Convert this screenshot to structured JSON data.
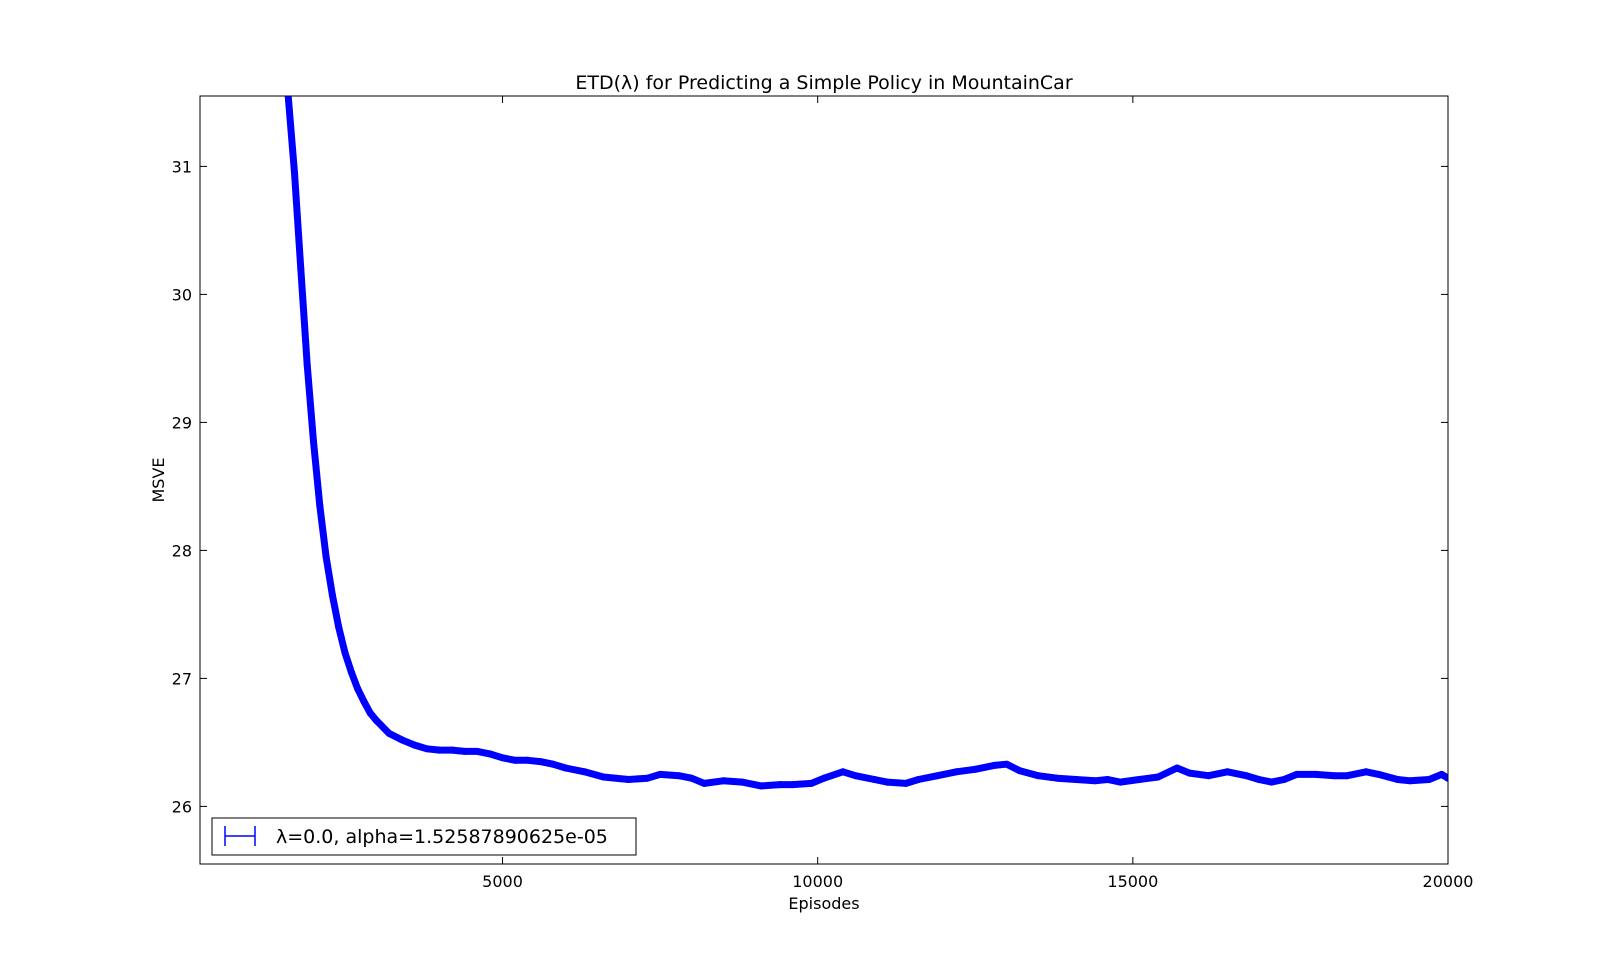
{
  "chart_data": {
    "type": "line",
    "title": "ETD(λ) for Predicting a Simple Policy in MountainCar",
    "xlabel": "Episodes",
    "ylabel": "MSVE",
    "xlim": [
      200,
      20000
    ],
    "ylim": [
      25.55,
      31.55
    ],
    "xticks": [
      5000,
      10000,
      15000,
      20000
    ],
    "xtick_labels": [
      "5000",
      "10000",
      "15000",
      "20000"
    ],
    "yticks": [
      26,
      27,
      28,
      29,
      30,
      31
    ],
    "ytick_labels": [
      "26",
      "27",
      "28",
      "29",
      "30",
      "31"
    ],
    "grid": false,
    "legend_position": "lower-left",
    "series": [
      {
        "name": "λ=0.0, alpha=1.52587890625e-05",
        "color": "#0000ff",
        "marker": "errorbar",
        "x": [
          1600,
          1700,
          1800,
          1900,
          2000,
          2100,
          2200,
          2300,
          2400,
          2500,
          2600,
          2700,
          2800,
          2900,
          3000,
          3200,
          3400,
          3600,
          3800,
          4000,
          4200,
          4400,
          4600,
          4800,
          5000,
          5200,
          5400,
          5600,
          5800,
          6000,
          6300,
          6600,
          7000,
          7300,
          7500,
          7800,
          8000,
          8200,
          8500,
          8800,
          9100,
          9400,
          9600,
          9900,
          10100,
          10400,
          10600,
          10900,
          11100,
          11400,
          11600,
          11900,
          12200,
          12500,
          12800,
          13000,
          13200,
          13500,
          13800,
          14100,
          14400,
          14600,
          14800,
          15100,
          15400,
          15700,
          15900,
          16200,
          16500,
          16800,
          17000,
          17200,
          17400,
          17600,
          17900,
          18200,
          18400,
          18700,
          18900,
          19200,
          19400,
          19700,
          19900,
          20000
        ],
        "y": [
          31.55,
          30.95,
          30.2,
          29.45,
          28.85,
          28.35,
          27.95,
          27.65,
          27.4,
          27.2,
          27.05,
          26.92,
          26.82,
          26.73,
          26.67,
          26.57,
          26.52,
          26.48,
          26.45,
          26.44,
          26.44,
          26.43,
          26.43,
          26.41,
          26.38,
          26.36,
          26.36,
          26.35,
          26.33,
          26.3,
          26.27,
          26.23,
          26.21,
          26.22,
          26.25,
          26.24,
          26.22,
          26.18,
          26.2,
          26.19,
          26.16,
          26.17,
          26.17,
          26.18,
          26.22,
          26.27,
          26.24,
          26.21,
          26.19,
          26.18,
          26.21,
          26.24,
          26.27,
          26.29,
          26.32,
          26.33,
          26.28,
          26.24,
          26.22,
          26.21,
          26.2,
          26.21,
          26.19,
          26.21,
          26.23,
          26.3,
          26.26,
          26.24,
          26.27,
          26.24,
          26.21,
          26.19,
          26.21,
          26.25,
          26.25,
          26.24,
          26.24,
          26.27,
          26.25,
          26.21,
          26.2,
          26.21,
          26.25,
          26.22
        ]
      }
    ]
  }
}
